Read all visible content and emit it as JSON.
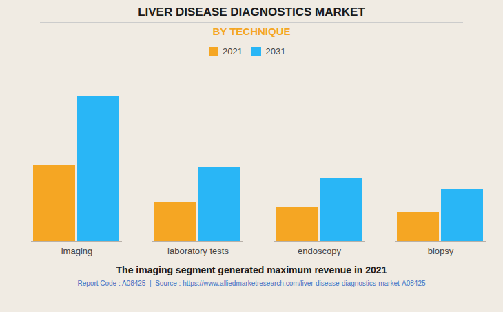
{
  "chart_data": {
    "type": "bar",
    "title": "LIVER DISEASE DIAGNOSTICS MARKET",
    "subtitle": "BY TECHNIQUE",
    "categories": [
      "imaging",
      "laboratory tests",
      "endoscopy",
      "biopsy"
    ],
    "series": [
      {
        "name": "2021",
        "color": "#F5A623",
        "values": [
          5.5,
          2.8,
          2.5,
          2.1
        ]
      },
      {
        "name": "2031",
        "color": "#29B6F6",
        "values": [
          10.5,
          5.4,
          4.6,
          3.8
        ]
      }
    ],
    "ylim": [
      0,
      12
    ],
    "yticks": [],
    "grid": false,
    "tick_labels": "x",
    "legend": "top",
    "annotations": [
      "The imaging segment generated maximum revenue in 2021",
      "Report Code : A08425  |  Source : https://www.alliedmarketresearch.com/liver-disease-diagnostics-market-A08425"
    ]
  }
}
